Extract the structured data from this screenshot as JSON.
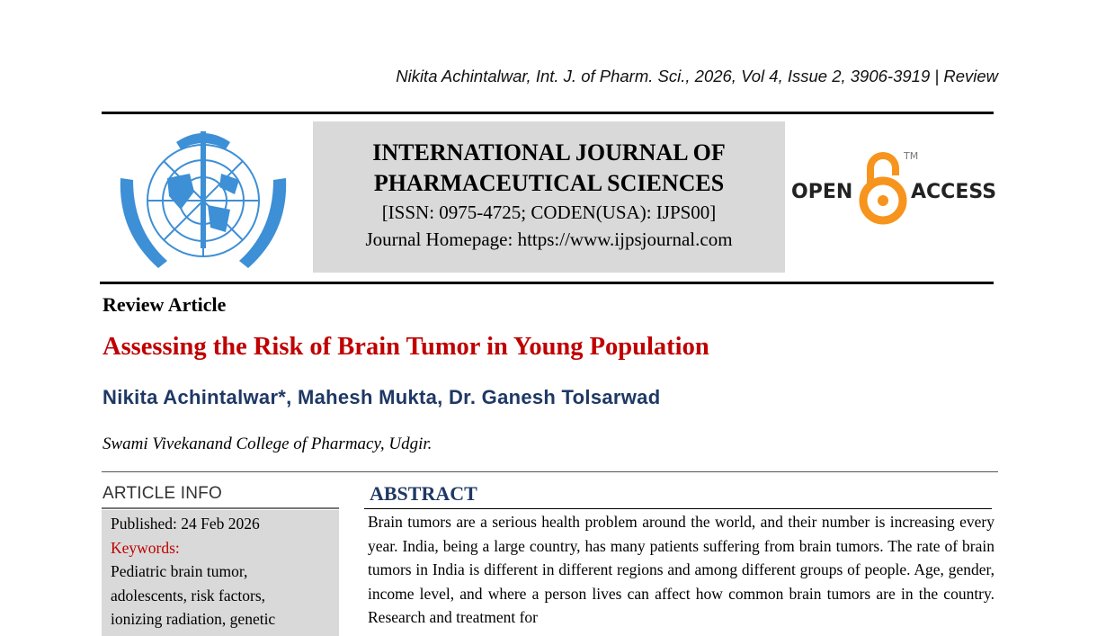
{
  "running_header": "Nikita Achintalwar, Int. J. of Pharm. Sci., 2026, Vol 4, Issue 2, 3906-3919 | Review",
  "journal": {
    "name_line1": "INTERNATIONAL JOURNAL OF",
    "name_line2": "PHARMACEUTICAL SCIENCES",
    "issn": "[ISSN: 0975-4725; CODEN(USA): IJPS00]",
    "homepage": "Journal Homepage: https://www.ijpsjournal.com",
    "logo_icon": "journal-emblem-logo"
  },
  "open_access": {
    "left": "OPEN",
    "right": "ACCESS",
    "tm": "TM",
    "color": "#f7941d"
  },
  "article": {
    "type": "Review Article",
    "title": "Assessing the Risk of Brain Tumor in Young Population",
    "authors": "Nikita Achintalwar*, Mahesh Mukta, Dr. Ganesh Tolsarwad",
    "affiliation": "Swami Vivekanand College of Pharmacy, Udgir."
  },
  "article_info": {
    "heading": "ARTICLE INFO",
    "published": "Published:  24 Feb 2026",
    "keywords_label": "Keywords:",
    "keywords_lines": [
      "Pediatric brain tumor,",
      "adolescents, risk factors,",
      "ionizing radiation, genetic"
    ]
  },
  "abstract": {
    "heading": "ABSTRACT",
    "text": "Brain tumors are a serious health problem around the world, and their number is increasing every year. India, being a large country, has many patients suffering from brain tumors. The rate of brain tumors in India is different in different regions and among different groups of people. Age, gender, income level, and where a person lives can affect how common brain tumors are in the country. Research and treatment for"
  },
  "colors": {
    "title_red": "#c00000",
    "navy": "#1f3864",
    "box_gray": "#d9d9d9",
    "emblem_blue": "#3d8fd6"
  }
}
